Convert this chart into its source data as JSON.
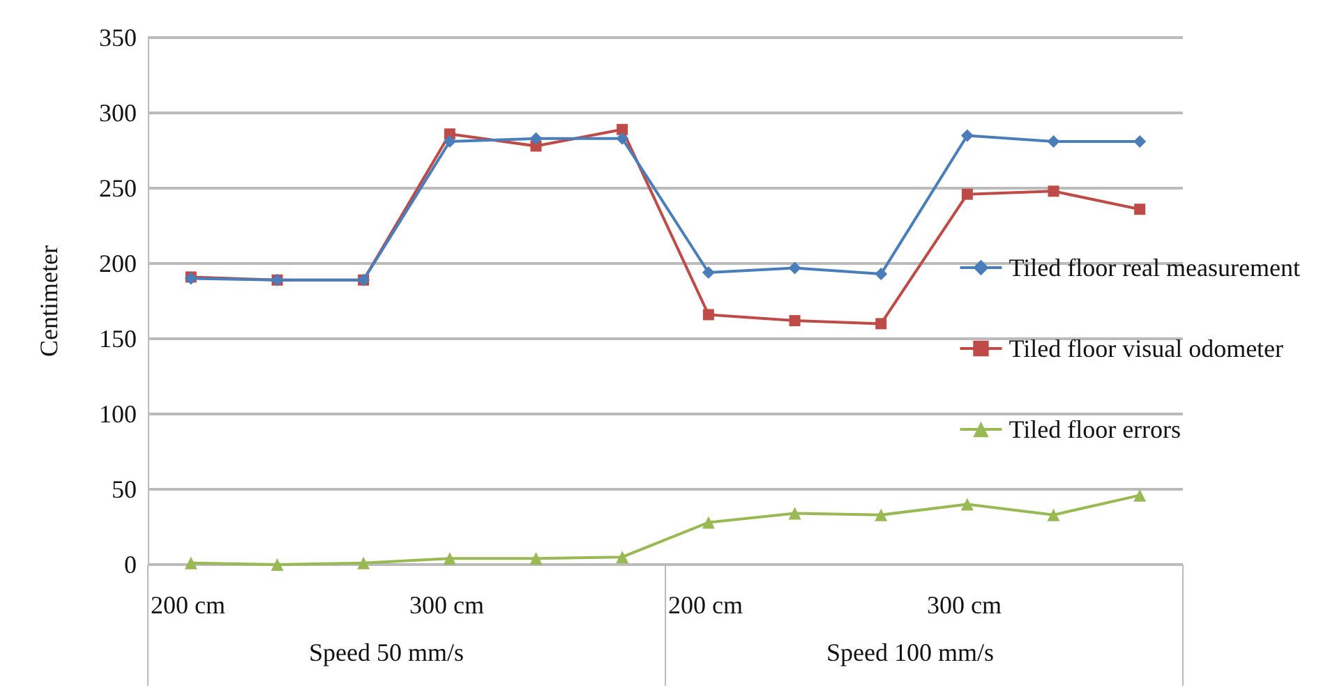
{
  "chart_data": {
    "type": "line",
    "ylabel": "Centimeter",
    "categories": [
      null,
      null,
      null,
      null,
      null,
      null,
      null,
      null,
      null,
      null,
      null,
      null
    ],
    "series": [
      {
        "name": "Tiled floor real measurement",
        "color": "#4a7ebb",
        "marker": "diamond",
        "values": [
          190,
          189,
          189,
          281,
          283,
          283,
          194,
          197,
          193,
          285,
          281,
          281
        ]
      },
      {
        "name": "Tiled floor visual odometer",
        "color": "#be4b48",
        "marker": "square",
        "values": [
          191,
          189,
          189,
          286,
          278,
          289,
          166,
          162,
          160,
          246,
          248,
          236
        ]
      },
      {
        "name": "Tiled floor errors",
        "color": "#98b954",
        "marker": "triangle",
        "values": [
          1,
          0,
          1,
          4,
          4,
          5,
          28,
          34,
          33,
          40,
          33,
          46
        ]
      }
    ],
    "ylim": [
      0,
      350
    ],
    "yticks": [
      0,
      50,
      100,
      150,
      200,
      250,
      300,
      350
    ],
    "grid": "y",
    "legend": "right",
    "annotations": [
      "200 cm",
      "300 cm",
      "200 cm",
      "300 cm",
      "Speed 50 mm/s",
      "Speed 100 mm/s"
    ]
  }
}
